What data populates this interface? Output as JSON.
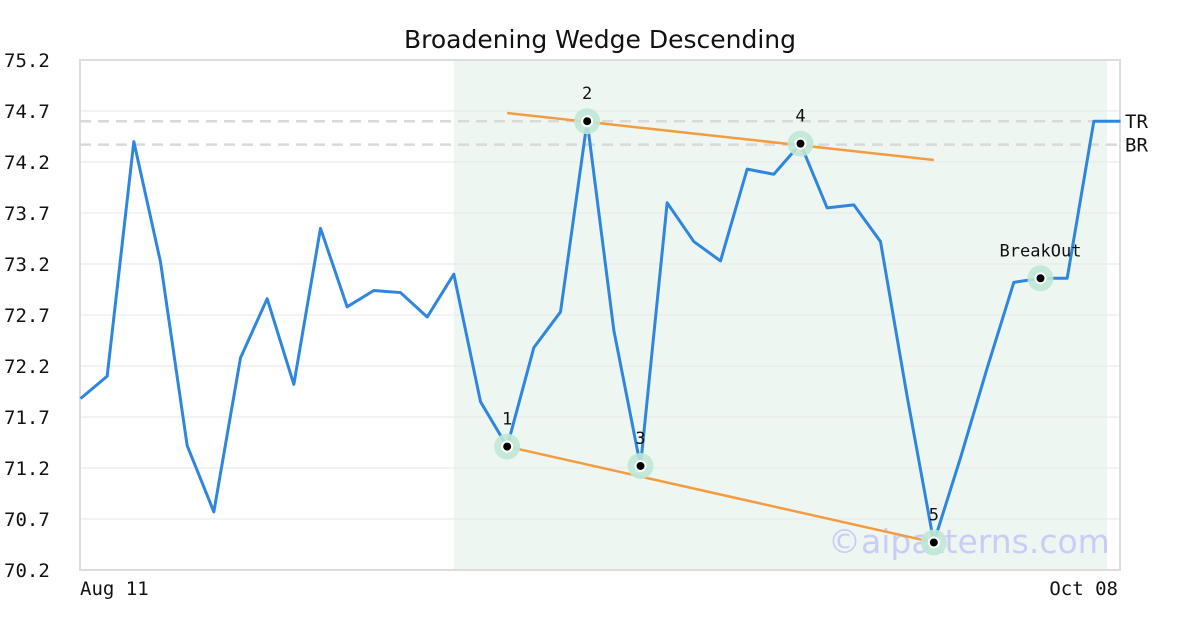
{
  "chart_data": {
    "type": "line",
    "title": "Broadening Wedge Descending",
    "xlabel": "",
    "ylabel": "",
    "x_tick_labels": [
      "Aug 11",
      "Oct 08"
    ],
    "y_ticks": [
      70.2,
      70.7,
      71.2,
      71.7,
      72.2,
      72.7,
      73.2,
      73.7,
      74.2,
      74.7,
      75.2
    ],
    "y_tick_labels": [
      "70.2",
      "70.7",
      "71.2",
      "71.7",
      "72.2",
      "72.7",
      "73.2",
      "73.7",
      "74.2",
      "74.7",
      "75.2"
    ],
    "ylim": [
      70.2,
      75.2
    ],
    "grid": "horizontal",
    "series": [
      {
        "color": "#2e86de",
        "values": [
          71.88,
          72.1,
          74.4,
          73.22,
          71.42,
          70.77,
          72.28,
          72.86,
          72.02,
          73.55,
          72.78,
          72.94,
          72.92,
          72.68,
          73.1,
          71.85,
          71.41,
          72.38,
          72.73,
          74.6,
          72.55,
          71.22,
          73.8,
          73.42,
          73.23,
          74.13,
          74.08,
          74.38,
          73.75,
          73.78,
          73.42,
          71.9,
          70.47,
          71.3,
          72.18,
          73.02,
          73.06,
          73.06,
          74.6,
          74.6
        ]
      }
    ],
    "highlight_region": {
      "x_start": 14,
      "x_end": 38.5,
      "color": "#eef6f2"
    },
    "pattern_points": [
      {
        "label": "1",
        "x": 16,
        "y": 71.41
      },
      {
        "label": "2",
        "x": 19,
        "y": 74.6
      },
      {
        "label": "3",
        "x": 21,
        "y": 71.22
      },
      {
        "label": "4",
        "x": 27,
        "y": 74.38
      },
      {
        "label": "5",
        "x": 32,
        "y": 70.47
      }
    ],
    "breakout": {
      "label": "BreakOut",
      "x": 36,
      "y": 73.06
    },
    "trend_lines": [
      {
        "color": "#f39c3f",
        "from": {
          "x": 16,
          "y": 74.68
        },
        "to": {
          "x": 32,
          "y": 74.22
        }
      },
      {
        "color": "#f39c3f",
        "from": {
          "x": 16,
          "y": 71.41
        },
        "to": {
          "x": 32,
          "y": 70.47
        }
      }
    ],
    "reference_lines": [
      {
        "label": "TR",
        "y": 74.6,
        "color": "#d9d9d9"
      },
      {
        "label": "BR",
        "y": 74.37,
        "color": "#d9d9d9"
      }
    ],
    "watermark": "©aipatterns.com"
  }
}
